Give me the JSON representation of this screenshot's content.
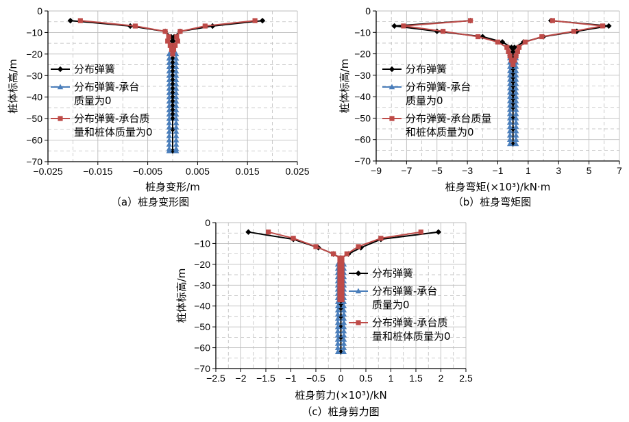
{
  "colors": {
    "s1": "#000000",
    "s2": "#4a7ebb",
    "s3": "#be4b48",
    "grid": "#bdbdbd"
  },
  "chart_data": [
    {
      "type": "line",
      "caption": "（a）桩身变形图",
      "xlabel": "桩身变形/m",
      "ylabel": "桩体标高/m",
      "xlim": [
        -0.025,
        0.025
      ],
      "ylim": [
        -70,
        0
      ],
      "xticks": [
        "−0.025",
        "−0.015",
        "−0.005",
        "0.005",
        "0.015",
        "0.025"
      ],
      "xtick_values": [
        -0.025,
        -0.015,
        -0.005,
        0.005,
        0.015,
        0.025
      ],
      "yticks": [
        "0",
        "−10",
        "−20",
        "−30",
        "−40",
        "−50",
        "−60",
        "−70"
      ],
      "ytick_values": [
        0,
        -10,
        -20,
        -30,
        -40,
        -50,
        -60,
        -70
      ],
      "legend": [
        "分布弹簧",
        "分布弹簧-承台\n质量为0",
        "分布弹簧-承台质\n量和桩体质量为0"
      ],
      "series": [
        {
          "name": "分布弹簧",
          "marker": "diamond",
          "branches": [
            {
              "x": [
                -0.0205,
                -0.0085,
                -0.0015,
                -0.0003,
                -0.0001,
                0,
                0,
                0,
                0,
                0,
                0,
                0,
                0,
                0,
                0,
                0,
                0,
                0,
                0,
                0,
                0,
                0,
                0,
                0,
                0
              ],
              "y": [
                -4.5,
                -7,
                -9.5,
                -12,
                -14,
                -16,
                -18,
                -20,
                -22,
                -24,
                -26,
                -28,
                -30,
                -32,
                -34,
                -36,
                -38,
                -40,
                -42,
                -44,
                -46,
                -48,
                -50,
                -55,
                -65
              ]
            },
            {
              "x": [
                0.018,
                0.008,
                0.0015,
                0.0003,
                0.0001,
                0
              ],
              "y": [
                -4.5,
                -7,
                -9.5,
                -12,
                -14,
                -16
              ]
            }
          ]
        },
        {
          "name": "分布弹簧-承台质量为0",
          "marker": "triangle",
          "branches": [
            {
              "x": [
                -0.0007,
                -0.0007,
                -0.0007,
                -0.0007,
                -0.0007,
                -0.0007,
                -0.0007,
                -0.0007,
                -0.0007,
                -0.0007,
                -0.0007,
                -0.0007,
                -0.0007,
                -0.0007,
                -0.0007,
                -0.0007,
                -0.0007,
                -0.0007,
                -0.0007,
                -0.0007,
                -0.0007,
                -0.0007,
                -0.0007,
                -0.0007
              ],
              "y": [
                -20,
                -22,
                -24,
                -26,
                -28,
                -30,
                -32,
                -34,
                -36,
                -38,
                -40,
                -42,
                -44,
                -46,
                -48,
                -50,
                -52,
                -54,
                -56,
                -58,
                -60,
                -62,
                -64,
                -65
              ]
            },
            {
              "x": [
                0.0007,
                0.0007,
                0.0007,
                0.0007,
                0.0007,
                0.0007,
                0.0007,
                0.0007,
                0.0007,
                0.0007,
                0.0007,
                0.0007,
                0.0007,
                0.0007,
                0.0007,
                0.0007,
                0.0007,
                0.0007,
                0.0007,
                0.0007,
                0.0007,
                0.0007,
                0.0007,
                0.0007
              ],
              "y": [
                -20,
                -22,
                -24,
                -26,
                -28,
                -30,
                -32,
                -34,
                -36,
                -38,
                -40,
                -42,
                -44,
                -46,
                -48,
                -50,
                -52,
                -54,
                -56,
                -58,
                -60,
                -62,
                -64,
                -65
              ]
            }
          ]
        },
        {
          "name": "分布弹簧-承台质量和桩体质量为0",
          "marker": "square",
          "branches": [
            {
              "x": [
                -0.0185,
                -0.0075,
                -0.0015,
                -0.0008,
                -0.001,
                -0.0005,
                -0.0002,
                0
              ],
              "y": [
                -4.5,
                -7,
                -9.5,
                -12,
                -14,
                -16,
                -18,
                -20
              ]
            },
            {
              "x": [
                0.0165,
                0.0065,
                0.0015,
                0.0008,
                0.001,
                0.0005,
                0.0002,
                0
              ],
              "y": [
                -4.5,
                -7,
                -9.5,
                -12,
                -14,
                -16,
                -18,
                -20
              ]
            }
          ]
        }
      ]
    },
    {
      "type": "line",
      "caption": "（b）桩身弯矩图",
      "xlabel": "桩身弯矩(×10³)/kN·m",
      "ylabel": "桩体标高/m",
      "xlim": [
        -9,
        7
      ],
      "ylim": [
        -70,
        0
      ],
      "xticks": [
        "−9",
        "−7",
        "−5",
        "−3",
        "−1",
        "1",
        "3",
        "5",
        "7"
      ],
      "xtick_values": [
        -9,
        -7,
        -5,
        -3,
        -1,
        1,
        3,
        5,
        7
      ],
      "yticks": [
        "0",
        "−10",
        "−20",
        "−30",
        "−40",
        "−50",
        "−60",
        "−70"
      ],
      "ytick_values": [
        0,
        -10,
        -20,
        -30,
        -40,
        -50,
        -60,
        -70
      ],
      "legend": [
        "分布弹簧",
        "分布弹簧-承台\n质量为0",
        "分布弹簧-承台质量\n和桩体质量为0"
      ],
      "series": [
        {
          "name": "分布弹簧",
          "marker": "diamond",
          "branches": [
            {
              "x": [
                -2.8,
                -7.8,
                -5,
                -2,
                -0.7,
                -0.1,
                0,
                0,
                0,
                0,
                0,
                0,
                0,
                0,
                0,
                0,
                0,
                0,
                0,
                0,
                0,
                0,
                0
              ],
              "y": [
                -4.5,
                -7,
                -9.5,
                -12,
                -14.5,
                -17,
                -19,
                -21,
                -23,
                -25,
                -27,
                -29,
                -31,
                -33,
                -35,
                -37,
                -39,
                -41,
                -43,
                -45,
                -50,
                -55,
                -62
              ]
            },
            {
              "x": [
                2.5,
                6.3,
                4.2,
                2,
                0.7,
                0.1,
                0
              ],
              "y": [
                -4.5,
                -7,
                -9.5,
                -12,
                -14.5,
                -17,
                -19
              ]
            }
          ]
        },
        {
          "name": "分布弹簧-承台质量为0",
          "marker": "triangle",
          "branches": [
            {
              "x": [
                -0.2,
                -0.2,
                -0.2,
                -0.2,
                -0.2,
                -0.2,
                -0.2,
                -0.2,
                -0.2,
                -0.2,
                -0.2,
                -0.2,
                -0.2,
                -0.2,
                -0.2,
                -0.2,
                -0.2,
                -0.2,
                -0.2,
                -0.2,
                -0.2,
                -0.2
              ],
              "y": [
                -20,
                -22,
                -24,
                -26,
                -28,
                -30,
                -32,
                -34,
                -36,
                -38,
                -40,
                -42,
                -44,
                -46,
                -48,
                -50,
                -52,
                -54,
                -56,
                -58,
                -60,
                -62
              ]
            },
            {
              "x": [
                0.2,
                0.2,
                0.2,
                0.2,
                0.2,
                0.2,
                0.2,
                0.2,
                0.2,
                0.2,
                0.2,
                0.2,
                0.2,
                0.2,
                0.2,
                0.2,
                0.2,
                0.2,
                0.2,
                0.2,
                0.2,
                0.2
              ],
              "y": [
                -20,
                -22,
                -24,
                -26,
                -28,
                -30,
                -32,
                -34,
                -36,
                -38,
                -40,
                -42,
                -44,
                -46,
                -48,
                -50,
                -52,
                -54,
                -56,
                -58,
                -60,
                -62
              ]
            }
          ]
        },
        {
          "name": "分布弹簧-承台质量和桩体质量为0",
          "marker": "square",
          "branches": [
            {
              "x": [
                -2.8,
                -7.2,
                -4.6,
                -2.3,
                -1,
                -0.4,
                -0.3,
                -0.2,
                -0.1,
                0
              ],
              "y": [
                -4.5,
                -7,
                -9.5,
                -12,
                -14.5,
                -17,
                -19,
                -21,
                -23,
                -25
              ]
            },
            {
              "x": [
                2.6,
                5.9,
                4,
                1.9,
                0.8,
                0.4,
                0.3,
                0.2,
                0.1,
                0
              ],
              "y": [
                -4.5,
                -7,
                -9.5,
                -12,
                -14.5,
                -17,
                -19,
                -21,
                -23,
                -25
              ]
            }
          ]
        }
      ]
    },
    {
      "type": "line",
      "caption": "（c）桩身剪力图",
      "xlabel": "桩身剪力(×10³)/kN",
      "ylabel": "桩体标高/m",
      "xlim": [
        -2.5,
        2.5
      ],
      "ylim": [
        -70,
        0
      ],
      "xticks": [
        "−2.5",
        "−2",
        "−1.5",
        "−1",
        "−0.5",
        "0",
        "0.5",
        "1",
        "1.5",
        "2",
        "2.5"
      ],
      "xtick_values": [
        -2.5,
        -2,
        -1.5,
        -1,
        -0.5,
        0,
        0.5,
        1,
        1.5,
        2,
        2.5
      ],
      "yticks": [
        "0",
        "−10",
        "−20",
        "−30",
        "−40",
        "−50",
        "−60",
        "−70"
      ],
      "ytick_values": [
        0,
        -10,
        -20,
        -30,
        -40,
        -50,
        -60,
        -70
      ],
      "legend": [
        "分布弹簧",
        "分布弹簧-承台\n质量为0",
        "分布弹簧-承台质\n量和桩体质量为0"
      ],
      "series": [
        {
          "name": "分布弹簧",
          "marker": "diamond",
          "branches": [
            {
              "x": [
                -1.85,
                -0.95,
                -0.45,
                -0.15,
                0,
                0,
                0,
                0,
                0,
                0,
                0,
                0,
                0,
                0,
                0,
                0,
                0,
                0,
                0,
                0,
                0
              ],
              "y": [
                -4.5,
                -8,
                -12,
                -15,
                -17,
                -19,
                -21,
                -23,
                -25,
                -27,
                -29,
                -31,
                -33,
                -35,
                -37,
                -39,
                -41,
                -45,
                -50,
                -55,
                -62
              ]
            },
            {
              "x": [
                1.95,
                0.8,
                0.4,
                0.15,
                0
              ],
              "y": [
                -4.5,
                -8,
                -12,
                -15,
                -17
              ]
            }
          ]
        },
        {
          "name": "分布弹簧-承台质量为0",
          "marker": "triangle",
          "branches": [
            {
              "x": [
                -0.06,
                -0.06,
                -0.06,
                -0.06,
                -0.06,
                -0.06,
                -0.06,
                -0.06,
                -0.06,
                -0.06,
                -0.06,
                -0.06,
                -0.06,
                -0.06,
                -0.06,
                -0.06,
                -0.06,
                -0.06,
                -0.06,
                -0.06,
                -0.06,
                -0.06
              ],
              "y": [
                -20,
                -22,
                -24,
                -26,
                -28,
                -30,
                -32,
                -34,
                -36,
                -38,
                -40,
                -42,
                -44,
                -46,
                -48,
                -50,
                -52,
                -54,
                -56,
                -58,
                -60,
                -62
              ]
            },
            {
              "x": [
                0.06,
                0.06,
                0.06,
                0.06,
                0.06,
                0.06,
                0.06,
                0.06,
                0.06,
                0.06,
                0.06,
                0.06,
                0.06,
                0.06,
                0.06,
                0.06,
                0.06,
                0.06,
                0.06,
                0.06,
                0.06,
                0.06
              ],
              "y": [
                -20,
                -22,
                -24,
                -26,
                -28,
                -30,
                -32,
                -34,
                -36,
                -38,
                -40,
                -42,
                -44,
                -46,
                -48,
                -50,
                -52,
                -54,
                -56,
                -58,
                -60,
                -62
              ]
            }
          ]
        },
        {
          "name": "分布弹簧-承台质量和桩体质量为0",
          "marker": "square",
          "branches": [
            {
              "x": [
                -1.45,
                -0.95,
                -0.5,
                -0.15,
                -0.02,
                -0.02,
                -0.02,
                -0.02,
                -0.02,
                -0.02,
                -0.02,
                -0.02,
                -0.02,
                -0.02,
                -0.02
              ],
              "y": [
                -4.5,
                -7.5,
                -11.5,
                -15,
                -17,
                -19,
                -21,
                -23,
                -25,
                -27,
                -29,
                -31,
                -33,
                -35,
                -37
              ]
            },
            {
              "x": [
                1.6,
                0.8,
                0.35,
                0.12,
                0.02,
                0.02,
                0.02,
                0.02,
                0.02,
                0.02,
                0.02,
                0.02,
                0.02,
                0.02,
                0.02
              ],
              "y": [
                -4.5,
                -7.5,
                -11.5,
                -15,
                -17,
                -19,
                -21,
                -23,
                -25,
                -27,
                -29,
                -31,
                -33,
                -35,
                -37
              ]
            }
          ]
        }
      ]
    }
  ]
}
